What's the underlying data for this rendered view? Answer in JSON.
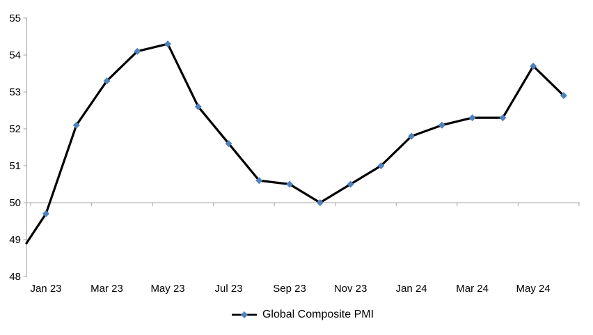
{
  "chart_data": {
    "type": "line",
    "title": "",
    "categories": [
      "Jan 23",
      "Feb 23",
      "Mar 23",
      "Apr 23",
      "May 23",
      "Jun 23",
      "Jul 23",
      "Aug 23",
      "Sep 23",
      "Oct 23",
      "Nov 23",
      "Dec 23",
      "Jan 24",
      "Feb 24",
      "Mar 24",
      "Apr 24",
      "May 24",
      "Jun 24"
    ],
    "series": [
      {
        "name": "Global Composite PMI",
        "values": [
          49.7,
          52.1,
          53.3,
          54.1,
          54.3,
          52.6,
          51.6,
          50.6,
          50.5,
          50.0,
          50.5,
          51.0,
          51.8,
          52.1,
          52.3,
          52.3,
          53.7,
          52.9
        ]
      }
    ],
    "edge_point": {
      "note": "line enters plot clipped at left y-axis",
      "value": 48.9
    },
    "x_tick_labels": [
      "Jan 23",
      "Mar 23",
      "May 23",
      "Jul 23",
      "Sep 23",
      "Nov 23",
      "Jan 24",
      "Mar 24",
      "May 24"
    ],
    "x_tick_label_step": 2,
    "y_ticks": [
      48,
      49,
      50,
      51,
      52,
      53,
      54,
      55
    ],
    "ylim": [
      48,
      55
    ],
    "x_axis_crosses_at": 50,
    "grid": "none except horizontal category axis line at 50",
    "legend": {
      "label": "Global Composite PMI",
      "position": "bottom-center"
    },
    "colors": {
      "line": "#000000",
      "marker": "#4F81BD",
      "axis": "#A6A6A6",
      "text": "#000000",
      "background": "#FFFFFF"
    }
  }
}
